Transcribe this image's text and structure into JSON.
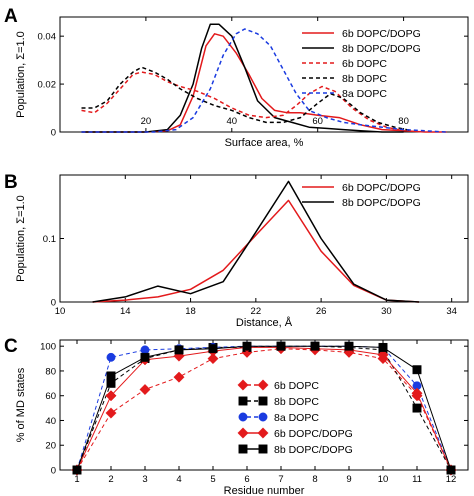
{
  "chart_data": [
    {
      "panel": "A",
      "type": "line",
      "xlabel": "Surface area, %",
      "ylabel": "Population, Σ=1.0",
      "xlim": [
        0,
        95
      ],
      "ylim": [
        0,
        0.048
      ],
      "xticks": [
        "20",
        "40",
        "60",
        "80"
      ],
      "xtick_values": [
        20,
        40,
        60,
        80
      ],
      "yticks": [
        "0",
        "0.02",
        "0.04"
      ],
      "ytick_values": [
        0,
        0.02,
        0.04
      ],
      "legend_position": "top-right",
      "series": [
        {
          "name": "6b DOPC/DOPG",
          "color": "#e31a1c",
          "style": "solid",
          "x": [
            5,
            10,
            15,
            20,
            25,
            28,
            31,
            34,
            36,
            38,
            41,
            44,
            47,
            50,
            53,
            56,
            60,
            65,
            70,
            75,
            80,
            85,
            90
          ],
          "y": [
            0,
            0,
            0,
            0,
            0.0005,
            0.003,
            0.015,
            0.036,
            0.041,
            0.04,
            0.033,
            0.024,
            0.014,
            0.009,
            0.008,
            0.008,
            0.007,
            0.006,
            0.003,
            0.001,
            0.0005,
            0,
            0
          ]
        },
        {
          "name": "8b DOPC/DOPG",
          "color": "#000000",
          "style": "solid",
          "x": [
            5,
            10,
            15,
            20,
            25,
            28,
            31,
            33,
            35,
            37,
            40,
            43,
            46,
            50,
            54,
            58,
            62,
            66,
            70,
            75,
            80
          ],
          "y": [
            0,
            0,
            0,
            0,
            0.001,
            0.007,
            0.02,
            0.035,
            0.045,
            0.045,
            0.04,
            0.027,
            0.013,
            0.006,
            0.004,
            0.002,
            0.0015,
            0.001,
            0.0005,
            0,
            0
          ]
        },
        {
          "name": "6b DOPC",
          "color": "#e31a1c",
          "style": "dashed",
          "x": [
            5,
            8,
            11,
            14,
            17,
            19,
            22,
            25,
            28,
            32,
            36,
            40,
            44,
            48,
            52,
            55,
            58,
            61,
            64,
            68,
            72,
            76,
            80
          ],
          "y": [
            0.009,
            0.008,
            0.012,
            0.018,
            0.024,
            0.025,
            0.024,
            0.021,
            0.019,
            0.017,
            0.014,
            0.01,
            0.007,
            0.006,
            0.007,
            0.011,
            0.016,
            0.019,
            0.017,
            0.01,
            0.005,
            0.002,
            0.0005
          ]
        },
        {
          "name": "8b DOPC",
          "color": "#000000",
          "style": "dashed",
          "x": [
            5,
            8,
            11,
            14,
            17,
            19,
            22,
            25,
            28,
            32,
            36,
            40,
            44,
            48,
            52,
            56,
            60,
            63,
            66,
            70,
            74,
            78,
            82
          ],
          "y": [
            0.01,
            0.01,
            0.013,
            0.02,
            0.025,
            0.027,
            0.025,
            0.022,
            0.018,
            0.014,
            0.011,
            0.009,
            0.006,
            0.004,
            0.004,
            0.006,
            0.012,
            0.016,
            0.014,
            0.008,
            0.004,
            0.002,
            0.0005
          ]
        },
        {
          "name": "8a DOPC",
          "color": "#1a3be0",
          "style": "dashed",
          "x": [
            5,
            15,
            22,
            27,
            31,
            35,
            38,
            41,
            43,
            46,
            49,
            52,
            55,
            58,
            62,
            66,
            70,
            75,
            80,
            85,
            90
          ],
          "y": [
            0,
            0,
            0,
            0.001,
            0.006,
            0.018,
            0.032,
            0.041,
            0.043,
            0.041,
            0.036,
            0.026,
            0.016,
            0.009,
            0.006,
            0.004,
            0.003,
            0.002,
            0.001,
            0.0005,
            0
          ]
        }
      ]
    },
    {
      "panel": "B",
      "type": "line",
      "xlabel": "Distance, Å",
      "ylabel": "Population, Σ=1.0",
      "xlim": [
        10,
        35
      ],
      "ylim": [
        0,
        0.2
      ],
      "xticks": [
        "10",
        "14",
        "18",
        "22",
        "26",
        "30",
        "34"
      ],
      "xtick_values": [
        10,
        14,
        18,
        22,
        26,
        30,
        34
      ],
      "yticks": [
        "0",
        "0.1"
      ],
      "ytick_values": [
        0,
        0.1
      ],
      "legend_position": "top-right",
      "series": [
        {
          "name": "6b DOPC/DOPG",
          "color": "#e31a1c",
          "style": "solid",
          "x": [
            12,
            14,
            16,
            18,
            20,
            22,
            24,
            26,
            28,
            30,
            32
          ],
          "y": [
            0,
            0.003,
            0.008,
            0.02,
            0.05,
            0.105,
            0.16,
            0.08,
            0.026,
            0.003,
            0
          ]
        },
        {
          "name": "8b DOPC/DOPG",
          "color": "#000000",
          "style": "solid",
          "x": [
            12,
            14,
            16,
            18,
            20,
            22,
            24,
            26,
            28,
            30,
            32
          ],
          "y": [
            0,
            0.008,
            0.025,
            0.013,
            0.032,
            0.11,
            0.19,
            0.1,
            0.028,
            0.003,
            0
          ]
        }
      ]
    },
    {
      "panel": "C",
      "type": "line",
      "xlabel": "Residue number",
      "ylabel": "% of MD states",
      "xlim": [
        0.5,
        12.5
      ],
      "ylim": [
        0,
        105
      ],
      "categories": [
        "1",
        "2",
        "3",
        "4",
        "5",
        "6",
        "7",
        "8",
        "9",
        "10",
        "11",
        "12"
      ],
      "yticks": [
        "0",
        "20",
        "40",
        "60",
        "80",
        "100"
      ],
      "ytick_values": [
        0,
        20,
        40,
        60,
        80,
        100
      ],
      "legend_position": "center",
      "series": [
        {
          "name": "6b DOPC",
          "color": "#e31a1c",
          "style": "dashed",
          "marker": "diamond",
          "values": [
            0,
            46,
            65,
            75,
            90,
            95,
            98,
            97,
            95,
            90,
            60,
            0
          ]
        },
        {
          "name": "8b DOPC",
          "color": "#000000",
          "style": "dashed",
          "marker": "square",
          "values": [
            0,
            70,
            90,
            97,
            99,
            99,
            100,
            100,
            99,
            97,
            50,
            0
          ]
        },
        {
          "name": "8a DOPC",
          "color": "#1a3be0",
          "style": "dashed",
          "marker": "circle",
          "values": [
            0,
            91,
            97,
            98,
            99,
            100,
            100,
            100,
            100,
            99,
            68,
            0
          ]
        },
        {
          "name": "6b DOPC/DOPG",
          "color": "#e31a1c",
          "style": "solid",
          "marker": "diamond",
          "values": [
            0,
            60,
            89,
            92,
            96,
            99,
            99,
            98,
            97,
            93,
            62,
            0
          ]
        },
        {
          "name": "8b DOPC/DOPG",
          "color": "#000000",
          "style": "solid",
          "marker": "square",
          "values": [
            0,
            76,
            91,
            97,
            98,
            100,
            100,
            100,
            100,
            99,
            81,
            0
          ]
        }
      ]
    }
  ]
}
